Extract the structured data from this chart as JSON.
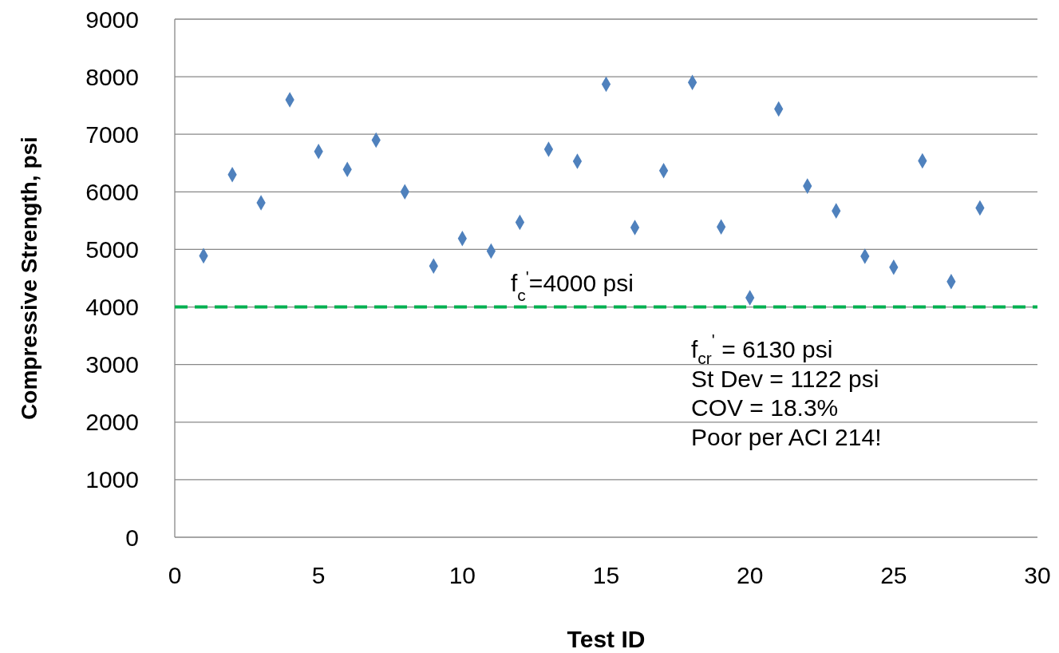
{
  "chart_data": {
    "type": "scatter",
    "xlabel": "Test ID",
    "ylabel": "Compressive Strength, psi",
    "x": [
      1,
      2,
      3,
      4,
      5,
      6,
      7,
      8,
      9,
      10,
      11,
      12,
      13,
      14,
      15,
      16,
      17,
      18,
      19,
      20,
      21,
      22,
      23,
      24,
      25,
      26,
      27,
      28
    ],
    "series": [
      {
        "color": "#4f81bd",
        "values": [
          4890,
          6300,
          5810,
          7600,
          6700,
          6390,
          6900,
          6000,
          4710,
          5190,
          4970,
          5470,
          6740,
          6530,
          7870,
          5380,
          6370,
          7900,
          5390,
          4160,
          7440,
          6100,
          5670,
          4880,
          4690,
          6540,
          4440,
          5720
        ]
      }
    ],
    "xlim": [
      0,
      30
    ],
    "xticks": [
      0,
      5,
      10,
      15,
      20,
      25,
      30
    ],
    "ylim": [
      0,
      9000
    ],
    "yticks": [
      0,
      1000,
      2000,
      3000,
      4000,
      5000,
      6000,
      7000,
      8000,
      9000
    ],
    "grid": "y",
    "marker": "diamond",
    "ref_lines": [
      {
        "axis": "y",
        "value": 4000,
        "label": "f$_{c}$$^{'}$=4000 psi",
        "color": "#00b050",
        "line_style": "dashed"
      }
    ],
    "annotations": [
      "f$_{cr}$$^{'}$ = 6130 psi",
      "St Dev = 1122 psi",
      "COV = 18.3%",
      "Poor per ACI 214!"
    ]
  }
}
